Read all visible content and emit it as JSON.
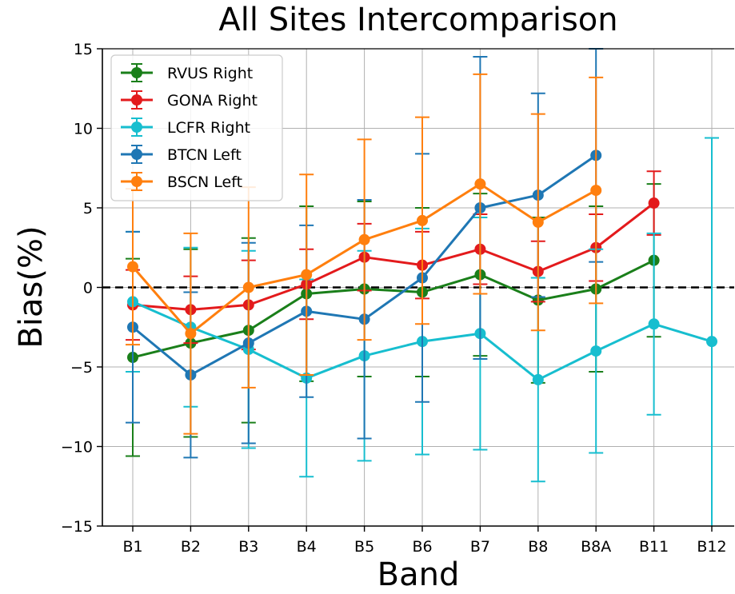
{
  "chart_data": {
    "type": "line",
    "title": "All Sites Intercomparison",
    "xlabel": "Band",
    "ylabel": "Bias(%)",
    "categories": [
      "B1",
      "B2",
      "B3",
      "B4",
      "B5",
      "B6",
      "B7",
      "B8",
      "B8A",
      "B11",
      "B12"
    ],
    "ylim": [
      -15,
      15
    ],
    "yticks": [
      -15,
      -10,
      -5,
      0,
      5,
      10,
      15
    ],
    "ytick_labels": [
      "−15",
      "−10",
      "−5",
      "0",
      "5",
      "10",
      "15"
    ],
    "grid": true,
    "reference_line": {
      "y": 0,
      "style": "dashed",
      "color": "#000000"
    },
    "legend_position": "top-left",
    "series": [
      {
        "name": "RVUS Right",
        "color": "#1a7f1a",
        "values": [
          -4.4,
          -3.5,
          -2.7,
          -0.4,
          -0.1,
          -0.3,
          0.8,
          -0.8,
          -0.1,
          1.7,
          null
        ],
        "errors": [
          6.2,
          5.9,
          5.8,
          5.5,
          5.5,
          5.3,
          5.1,
          5.2,
          5.2,
          4.8,
          null
        ]
      },
      {
        "name": "GONA Right",
        "color": "#e31a1c",
        "values": [
          -1.1,
          -1.4,
          -1.1,
          0.2,
          1.9,
          1.4,
          2.4,
          1.0,
          2.5,
          5.3,
          null
        ],
        "errors": [
          2.2,
          2.1,
          2.8,
          2.2,
          2.1,
          2.1,
          2.2,
          1.9,
          2.1,
          2.0,
          null
        ]
      },
      {
        "name": "LCFR Right",
        "color": "#17becf",
        "values": [
          -0.9,
          -2.5,
          -3.9,
          -5.7,
          -4.3,
          -3.4,
          -2.9,
          -5.8,
          -4.0,
          -2.3,
          -3.4
        ],
        "errors": [
          4.4,
          5.0,
          6.2,
          6.2,
          6.6,
          7.1,
          7.3,
          6.4,
          6.4,
          5.7,
          12.8
        ]
      },
      {
        "name": "BTCN Left",
        "color": "#1f77b4",
        "values": [
          -2.5,
          -5.5,
          -3.5,
          -1.5,
          -2.0,
          0.6,
          5.0,
          5.8,
          8.3,
          null,
          null
        ],
        "errors": [
          6.0,
          5.2,
          6.3,
          5.4,
          7.5,
          7.8,
          9.5,
          6.4,
          6.7,
          null,
          null
        ]
      },
      {
        "name": "BSCN Left",
        "color": "#ff7f0e",
        "values": [
          1.3,
          -2.9,
          0.0,
          0.8,
          3.0,
          4.2,
          6.5,
          4.1,
          6.1,
          null,
          null
        ],
        "errors": [
          4.9,
          6.3,
          6.3,
          6.3,
          6.3,
          6.5,
          6.9,
          6.8,
          7.1,
          null,
          null
        ]
      }
    ]
  }
}
